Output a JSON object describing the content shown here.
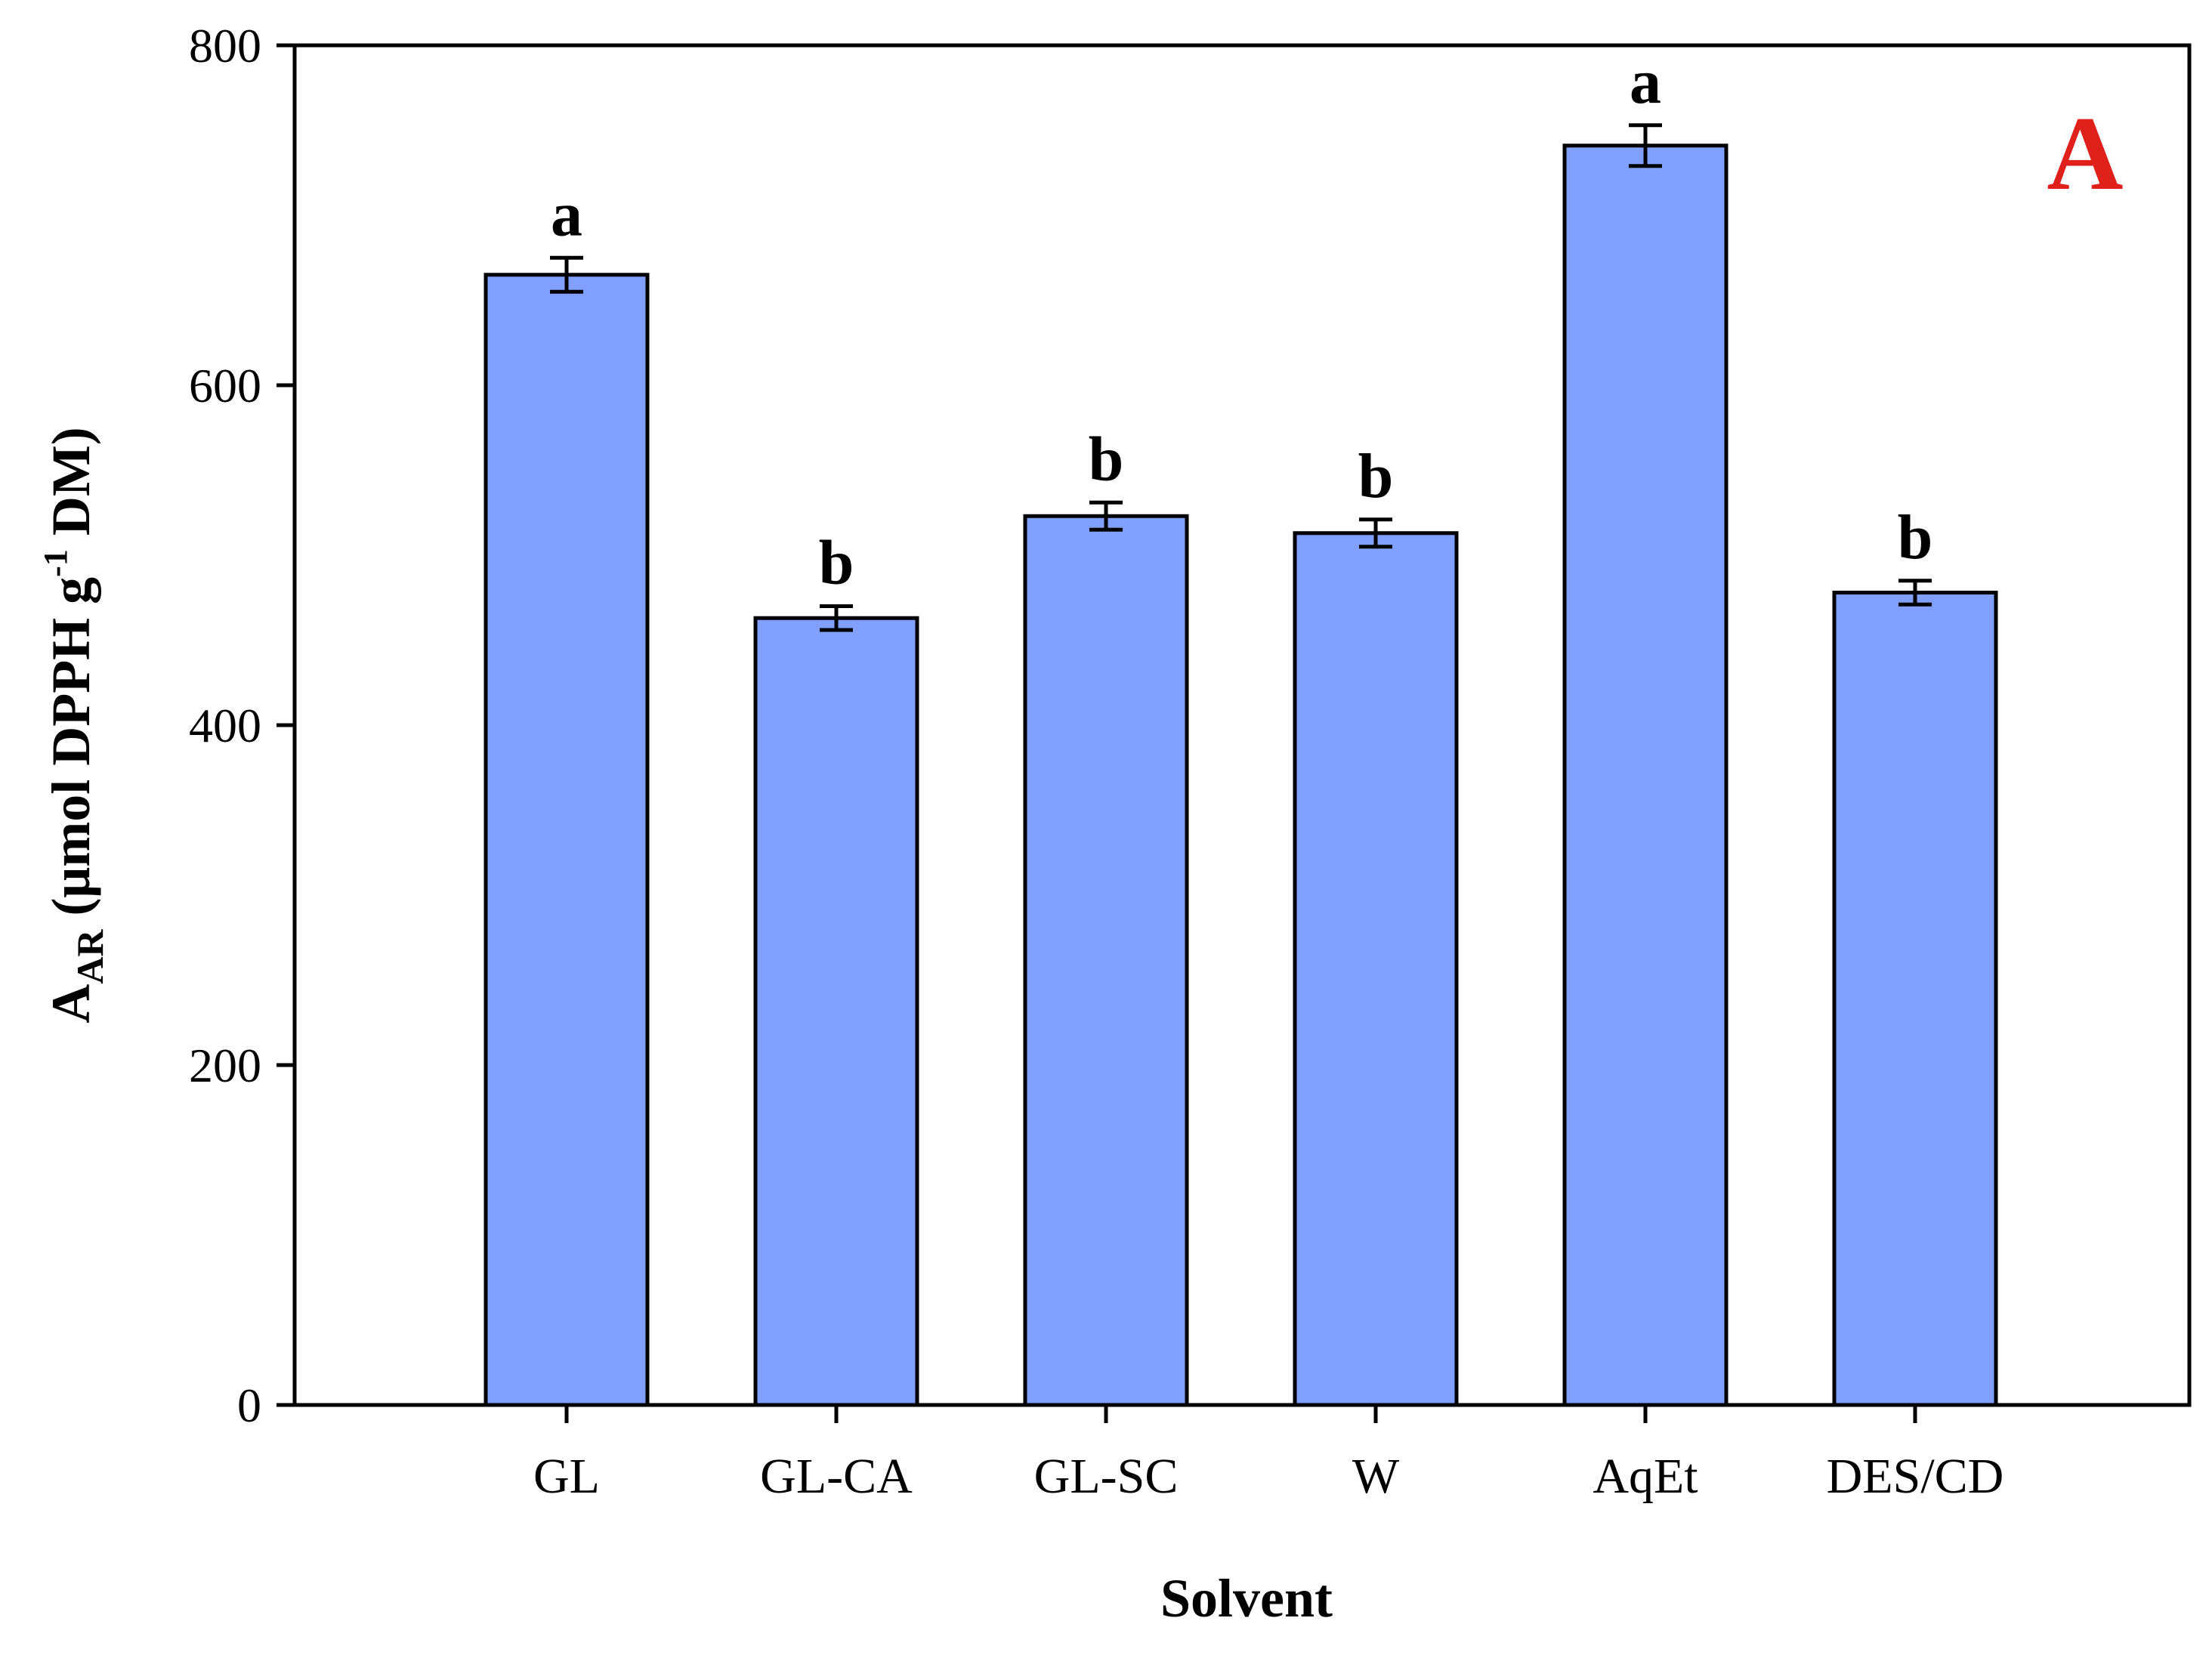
{
  "chart_data": {
    "type": "bar",
    "panel_label": "A",
    "panel_label_color": "#e0201b",
    "bar_color": "#809ffe",
    "categories": [
      "GL",
      "GL-CA",
      "GL-SC",
      "W",
      "AqEt",
      "DES/CD"
    ],
    "values": [
      665,
      463,
      523,
      513,
      741,
      478
    ],
    "errors": [
      10,
      7,
      8,
      8,
      12,
      7
    ],
    "significance": [
      "a",
      "b",
      "b",
      "b",
      "a",
      "b"
    ],
    "xlabel": "Solvent",
    "ylabel": {
      "main": "A",
      "sub": "AR",
      "pre_sup": " (μmol DPPH g",
      "sup": "-1",
      "post_sup": " DM)"
    },
    "ylim": [
      0,
      800
    ],
    "yticks": [
      0,
      200,
      400,
      600,
      800
    ],
    "grid": false,
    "legend": "none"
  }
}
